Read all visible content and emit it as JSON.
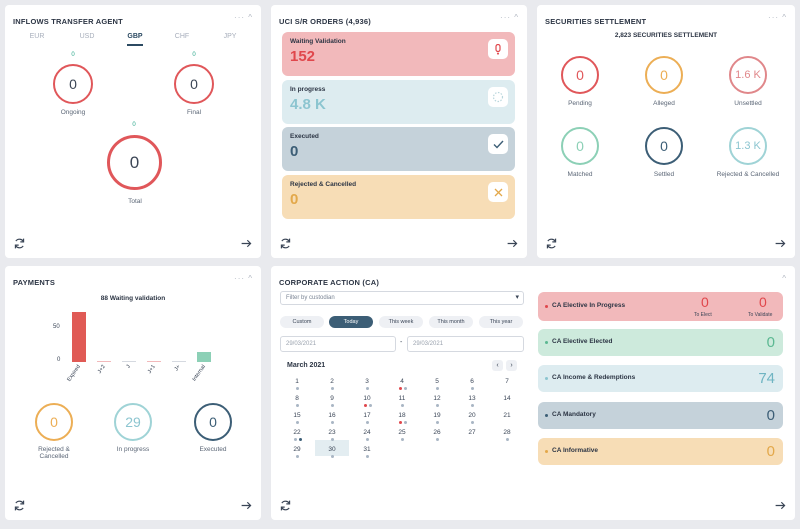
{
  "inflows": {
    "title": "INFLOWS TRANSFER AGENT",
    "controls": "··· ^",
    "currencies": [
      "EUR",
      "USD",
      "GBP",
      "CHF",
      "JPY"
    ],
    "active_currency": "GBP",
    "ongoing": {
      "small": "0",
      "value": "0",
      "label": "Ongoing"
    },
    "final": {
      "small": "0",
      "value": "0",
      "label": "Final"
    },
    "total": {
      "small": "0",
      "value": "0",
      "label": "Total"
    }
  },
  "orders": {
    "title": "UCI S/R ORDERS (4,936)",
    "controls": "··· ^",
    "cards": [
      {
        "title": "Waiting Validation",
        "value": "152",
        "icon": "exclamation-icon",
        "color": "#f2b9bb",
        "value_color": "#e0474c"
      },
      {
        "title": "In progress",
        "value": "4.8 K",
        "icon": "spinner-icon",
        "color": "#ddecf0",
        "value_color": "#8cc5d0"
      },
      {
        "title": "Executed",
        "value": "0",
        "icon": "check-icon",
        "color": "#c5d2da",
        "value_color": "#3c5e76"
      },
      {
        "title": "Rejected & Cancelled",
        "value": "0",
        "icon": "cross-icon",
        "color": "#f7ddb6",
        "value_color": "#e3a84a"
      }
    ]
  },
  "settlement": {
    "title": "SECURITIES SETTLEMENT",
    "controls": "··· ^",
    "subtitle": "2,823 SECURITIES SETTLEMENT",
    "items": [
      {
        "value": "0",
        "label": "Pending",
        "color": "#e0575a"
      },
      {
        "value": "0",
        "label": "Alleged",
        "color": "#ecae55"
      },
      {
        "value": "1.6 K",
        "label": "Unsettled",
        "color": "#e0878a"
      },
      {
        "value": "0",
        "label": "Matched",
        "color": "#8cd0b6"
      },
      {
        "value": "0",
        "label": "Settled",
        "color": "#3c5e76"
      },
      {
        "value": "1.3 K",
        "label": "Rejected & Cancelled",
        "color": "#9fd3d6"
      }
    ]
  },
  "payments": {
    "title": "PAYMENTS",
    "controls": "··· ^",
    "chart_data": {
      "type": "bar",
      "title": "88 Waiting validation",
      "categories": [
        "Expired",
        "J+2",
        "J",
        "J+1",
        "J+",
        "Internal"
      ],
      "values": [
        72,
        0.5,
        0.5,
        0.5,
        0.5,
        14
      ],
      "yticks": [
        "0",
        "50"
      ],
      "ylim": [
        0,
        80
      ]
    },
    "rings": [
      {
        "value": "0",
        "label": "Rejected & Cancelled",
        "color": "#ecae55"
      },
      {
        "value": "29",
        "label": "In progress",
        "color": "#9fd3d6"
      },
      {
        "value": "0",
        "label": "Executed",
        "color": "#3c5e76"
      }
    ]
  },
  "ca": {
    "title": "CORPORATE ACTION (CA)",
    "controls": "^",
    "filter_placeholder": "Filter by custodian",
    "date_buttons": [
      "Custom",
      "Today",
      "This week",
      "This month",
      "This year"
    ],
    "active_button": "Today",
    "date_from": "29/03/2021",
    "date_to": "29/03/2021",
    "date_sep": "-",
    "month": "March 2021",
    "days": [
      "1",
      "2",
      "3",
      "4",
      "5",
      "6",
      "7",
      "8",
      "9",
      "10",
      "11",
      "12",
      "13",
      "14",
      "15",
      "16",
      "17",
      "18",
      "19",
      "20",
      "21",
      "22",
      "23",
      "24",
      "25",
      "26",
      "27",
      "28",
      "29",
      "30",
      "31"
    ],
    "items": [
      {
        "title": "CA Elective In Progress",
        "v1": "0",
        "l1": "To Elect",
        "v2": "0",
        "l2": "To Validate",
        "color": "#f2b9bb",
        "dot": "#e0474c"
      },
      {
        "title": "CA Elective Elected",
        "value": "0",
        "color": "#cdeadc",
        "dot": "#5cb892",
        "value_color": "#5cb892"
      },
      {
        "title": "CA Income & Redemptions",
        "value": "74",
        "color": "#ddecf0",
        "dot": "#8cc5d0",
        "value_color": "#6fb4c2"
      },
      {
        "title": "CA Mandatory",
        "value": "0",
        "color": "#c5d2da",
        "dot": "#3c5e76",
        "value_color": "#3c5e76"
      },
      {
        "title": "CA Informative",
        "value": "0",
        "color": "#f7ddb6",
        "dot": "#e3a84a",
        "value_color": "#e3a84a"
      }
    ]
  }
}
